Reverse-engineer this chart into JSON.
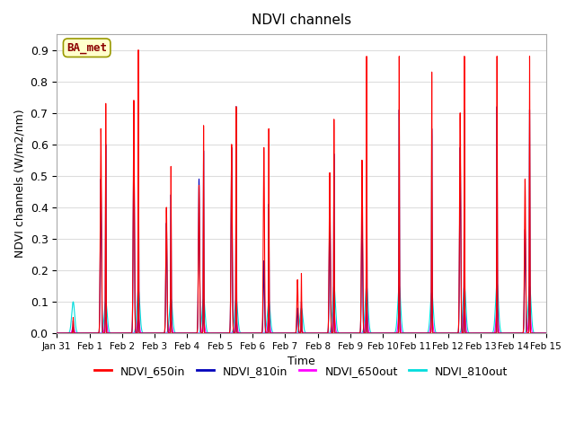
{
  "title": "NDVI channels",
  "xlabel": "Time",
  "ylabel": "NDVI channels (W/m2/nm)",
  "annotation": "BA_met",
  "ylim": [
    0.0,
    0.95
  ],
  "tick_labels": [
    "Jan 31",
    "Feb 1",
    "Feb 2",
    "Feb 3",
    "Feb 4",
    "Feb 5",
    "Feb 6",
    "Feb 7",
    "Feb 8",
    "Feb 9",
    "Feb 10",
    "Feb 11",
    "Feb 12",
    "Feb 13",
    "Feb 14",
    "Feb 15"
  ],
  "legend_entries": [
    "NDVI_650in",
    "NDVI_810in",
    "NDVI_650out",
    "NDVI_810out"
  ],
  "legend_colors": [
    "#ff0000",
    "#0000bb",
    "#ff00ff",
    "#00dddd"
  ],
  "bg_color": "#ffffff",
  "grid_color": "#dddddd",
  "peak_650in": [
    0.05,
    0.73,
    0.9,
    0.53,
    0.66,
    0.72,
    0.65,
    0.19,
    0.68,
    0.88,
    0.88,
    0.83,
    0.88,
    0.88,
    0.88
  ],
  "peak_810in": [
    0.04,
    0.6,
    0.74,
    0.44,
    0.58,
    0.72,
    0.41,
    0.1,
    0.57,
    0.71,
    0.71,
    0.65,
    0.71,
    0.72,
    0.71
  ],
  "peak_650out": [
    0.02,
    0.05,
    0.05,
    0.04,
    0.04,
    0.04,
    0.05,
    0.01,
    0.07,
    0.08,
    0.07,
    0.06,
    0.08,
    0.08,
    0.08
  ],
  "peak_810out": [
    0.1,
    0.1,
    0.14,
    0.11,
    0.11,
    0.11,
    0.1,
    0.08,
    0.15,
    0.15,
    0.15,
    0.13,
    0.15,
    0.16,
    0.15
  ],
  "sub_peak_650in": [
    0.0,
    0.65,
    0.74,
    0.4,
    0.47,
    0.6,
    0.59,
    0.17,
    0.51,
    0.55,
    0.0,
    0.0,
    0.7,
    0.0,
    0.49
  ],
  "sub_peak_810in": [
    0.0,
    0.49,
    0.65,
    0.35,
    0.49,
    0.59,
    0.23,
    0.08,
    0.41,
    0.4,
    0.0,
    0.0,
    0.59,
    0.0,
    0.33
  ],
  "has_sub": [
    0,
    1,
    1,
    1,
    1,
    1,
    1,
    1,
    1,
    1,
    0,
    0,
    1,
    0,
    1
  ],
  "peak_phase": [
    0.5,
    0.5,
    0.5,
    0.5,
    0.5,
    0.5,
    0.5,
    0.5,
    0.5,
    0.5,
    0.5,
    0.5,
    0.5,
    0.5,
    0.5
  ],
  "sub_phase": [
    0.5,
    0.35,
    0.36,
    0.36,
    0.36,
    0.36,
    0.35,
    0.38,
    0.37,
    0.36,
    0.5,
    0.5,
    0.37,
    0.5,
    0.36
  ]
}
